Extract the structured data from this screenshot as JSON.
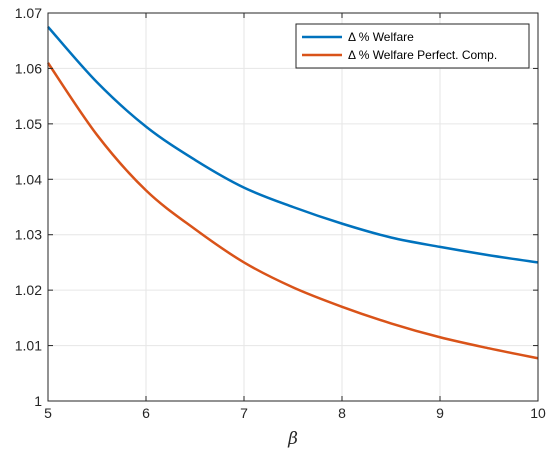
{
  "chart_data": {
    "type": "line",
    "xlabel": "β",
    "ylabel": "",
    "title": "",
    "xlim": [
      5,
      10
    ],
    "ylim": [
      1.0,
      1.07
    ],
    "xticks": [
      5,
      6,
      7,
      8,
      9,
      10
    ],
    "yticks": [
      1,
      1.01,
      1.02,
      1.03,
      1.04,
      1.05,
      1.06,
      1.07
    ],
    "grid": true,
    "legend_position": "top-right",
    "legend_prefix": "Δ",
    "series": [
      {
        "name": "% Welfare",
        "color": "#0072BD",
        "x": [
          5,
          5.5,
          6,
          6.5,
          7,
          7.5,
          8,
          8.5,
          9,
          9.5,
          10
        ],
        "y": [
          1.0675,
          1.0575,
          1.0495,
          1.0435,
          1.0385,
          1.035,
          1.032,
          1.0295,
          1.0278,
          1.0263,
          1.025
        ]
      },
      {
        "name": "% Welfare Perfect. Comp.",
        "color": "#D95319",
        "x": [
          5,
          5.5,
          6,
          6.5,
          7,
          7.5,
          8,
          8.5,
          9,
          9.5,
          10
        ],
        "y": [
          1.061,
          1.048,
          1.038,
          1.031,
          1.025,
          1.0205,
          1.017,
          1.014,
          1.0115,
          1.0095,
          1.0077
        ]
      }
    ]
  }
}
